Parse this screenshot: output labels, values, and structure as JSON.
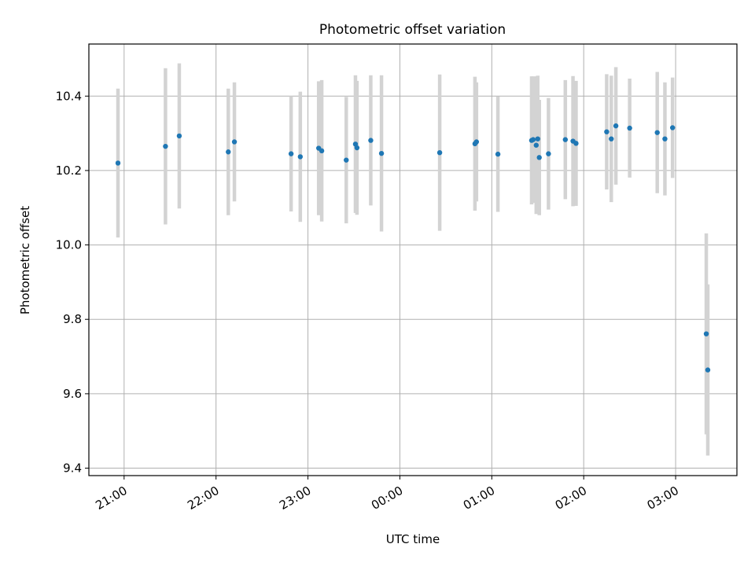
{
  "chart_data": {
    "type": "scatter",
    "title": "Photometric offset variation",
    "xlabel": "UTC time",
    "ylabel": "Photometric offset",
    "x_axis": "time",
    "x_tick_labels": [
      "21:00",
      "22:00",
      "23:00",
      "00:00",
      "01:00",
      "02:00",
      "03:00"
    ],
    "y_tick_labels": [
      "9.4",
      "9.6",
      "9.8",
      "10.0",
      "10.2",
      "10.4"
    ],
    "xlim": [
      "20:37",
      "03:40"
    ],
    "ylim": [
      9.38,
      10.54
    ],
    "grid": true,
    "colors": {
      "point": "#1f77b4",
      "errorbar": "#d3d3d3",
      "grid": "#b0b0b0"
    },
    "points": [
      {
        "x": "20:56",
        "y": 10.22,
        "err": 0.2
      },
      {
        "x": "21:27",
        "y": 10.265,
        "err": 0.21
      },
      {
        "x": "21:36",
        "y": 10.293,
        "err": 0.195
      },
      {
        "x": "22:08",
        "y": 10.25,
        "err": 0.17
      },
      {
        "x": "22:12",
        "y": 10.277,
        "err": 0.16
      },
      {
        "x": "22:49",
        "y": 10.245,
        "err": 0.155
      },
      {
        "x": "22:55",
        "y": 10.237,
        "err": 0.175
      },
      {
        "x": "23:07",
        "y": 10.26,
        "err": 0.18
      },
      {
        "x": "23:09",
        "y": 10.253,
        "err": 0.19
      },
      {
        "x": "23:25",
        "y": 10.228,
        "err": 0.17
      },
      {
        "x": "23:31",
        "y": 10.271,
        "err": 0.185
      },
      {
        "x": "23:32",
        "y": 10.261,
        "err": 0.18
      },
      {
        "x": "23:41",
        "y": 10.281,
        "err": 0.175
      },
      {
        "x": "23:48",
        "y": 10.246,
        "err": 0.21
      },
      {
        "x": "00:26",
        "y": 10.248,
        "err": 0.21
      },
      {
        "x": "00:49",
        "y": 10.272,
        "err": 0.18
      },
      {
        "x": "00:50",
        "y": 10.277,
        "err": 0.16
      },
      {
        "x": "01:04",
        "y": 10.244,
        "err": 0.155
      },
      {
        "x": "01:26",
        "y": 10.281,
        "err": 0.172
      },
      {
        "x": "01:27",
        "y": 10.283,
        "err": 0.17
      },
      {
        "x": "01:29",
        "y": 10.268,
        "err": 0.185
      },
      {
        "x": "01:30",
        "y": 10.285,
        "err": 0.17
      },
      {
        "x": "01:31",
        "y": 10.235,
        "err": 0.155
      },
      {
        "x": "01:37",
        "y": 10.245,
        "err": 0.15
      },
      {
        "x": "01:48",
        "y": 10.283,
        "err": 0.16
      },
      {
        "x": "01:53",
        "y": 10.279,
        "err": 0.175
      },
      {
        "x": "01:55",
        "y": 10.273,
        "err": 0.168
      },
      {
        "x": "02:15",
        "y": 10.304,
        "err": 0.155
      },
      {
        "x": "02:18",
        "y": 10.285,
        "err": 0.17
      },
      {
        "x": "02:21",
        "y": 10.32,
        "err": 0.158
      },
      {
        "x": "02:30",
        "y": 10.314,
        "err": 0.133
      },
      {
        "x": "02:48",
        "y": 10.302,
        "err": 0.163
      },
      {
        "x": "02:53",
        "y": 10.285,
        "err": 0.152
      },
      {
        "x": "02:58",
        "y": 10.315,
        "err": 0.135
      },
      {
        "x": "03:20",
        "y": 9.761,
        "err": 0.27
      },
      {
        "x": "03:21",
        "y": 9.664,
        "err": 0.23
      }
    ]
  }
}
